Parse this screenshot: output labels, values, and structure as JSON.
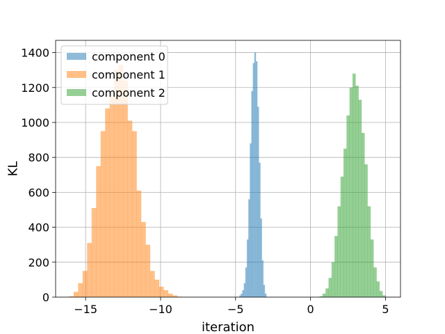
{
  "chart_data": {
    "type": "histogram",
    "title": "",
    "xlabel": "iteration",
    "ylabel": "KL",
    "xlim": [
      -17.0,
      6.0
    ],
    "ylim": [
      0,
      1470
    ],
    "xticks": [
      -15,
      -10,
      -5,
      0,
      5
    ],
    "xtick_labels": [
      "−15",
      "−10",
      "−5",
      "0",
      "5"
    ],
    "yticks": [
      0,
      200,
      400,
      600,
      800,
      1000,
      1200,
      1400
    ],
    "ytick_labels": [
      "0",
      "200",
      "400",
      "600",
      "800",
      "1000",
      "1200",
      "1400"
    ],
    "grid": true,
    "legend_position": "top-left",
    "series": [
      {
        "name": "component 0",
        "color": "#1f77b4",
        "alpha": 0.5,
        "bin_edges": [
          -4.75,
          -4.65,
          -4.55,
          -4.45,
          -4.35,
          -4.25,
          -4.15,
          -4.05,
          -3.95,
          -3.85,
          -3.75,
          -3.65,
          -3.55,
          -3.45,
          -3.35,
          -3.25,
          -3.15,
          -3.05,
          -2.95
        ],
        "counts": [
          10,
          20,
          40,
          80,
          170,
          330,
          560,
          880,
          1180,
          1340,
          1400,
          1350,
          1090,
          770,
          450,
          210,
          70,
          20
        ]
      },
      {
        "name": "component 1",
        "color": "#ff7f0e",
        "alpha": 0.5,
        "bin_edges": [
          -16.1,
          -15.8,
          -15.5,
          -15.2,
          -14.9,
          -14.6,
          -14.3,
          -14.0,
          -13.7,
          -13.4,
          -13.1,
          -12.8,
          -12.5,
          -12.2,
          -11.9,
          -11.6,
          -11.3,
          -11.0,
          -10.7,
          -10.4,
          -10.1,
          -9.8,
          -9.5,
          -9.2,
          -8.9,
          -8.6
        ],
        "counts": [
          5,
          30,
          80,
          150,
          310,
          510,
          750,
          950,
          1080,
          1170,
          1300,
          1330,
          1240,
          1010,
          950,
          610,
          430,
          300,
          150,
          100,
          60,
          40,
          20,
          10,
          3
        ]
      },
      {
        "name": "component 2",
        "color": "#2ca02c",
        "alpha": 0.5,
        "bin_edges": [
          0.6,
          0.8,
          1.0,
          1.2,
          1.4,
          1.6,
          1.8,
          2.0,
          2.2,
          2.4,
          2.6,
          2.8,
          3.0,
          3.2,
          3.4,
          3.6,
          3.8,
          4.0,
          4.2,
          4.4,
          4.6,
          4.8,
          5.0
        ],
        "counts": [
          5,
          20,
          50,
          110,
          200,
          350,
          520,
          690,
          850,
          1040,
          1200,
          1280,
          1210,
          1130,
          940,
          760,
          520,
          330,
          170,
          90,
          35,
          10
        ]
      }
    ]
  }
}
